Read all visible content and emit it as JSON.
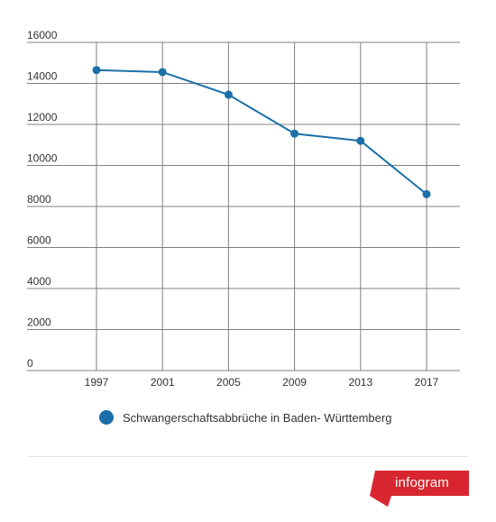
{
  "chart_data": {
    "type": "line",
    "title": "",
    "xlabel": "",
    "ylabel": "",
    "categories": [
      "1997",
      "2001",
      "2005",
      "2009",
      "2013",
      "2017"
    ],
    "series": [
      {
        "name": "Schwangerschaftsabbrüche in Baden- Württemberg",
        "values": [
          14650,
          14550,
          13450,
          11550,
          11200,
          8600
        ]
      }
    ],
    "ylim": [
      0,
      16000
    ],
    "yticks": [
      "0",
      "2000",
      "4000",
      "6000",
      "8000",
      "10000",
      "12000",
      "14000",
      "16000"
    ],
    "grid": true,
    "legend_position": "bottom",
    "series_color": "#1a6fa8",
    "gridline_color": "#808080"
  },
  "brand": {
    "label": "infogram",
    "color": "#d7262f"
  }
}
